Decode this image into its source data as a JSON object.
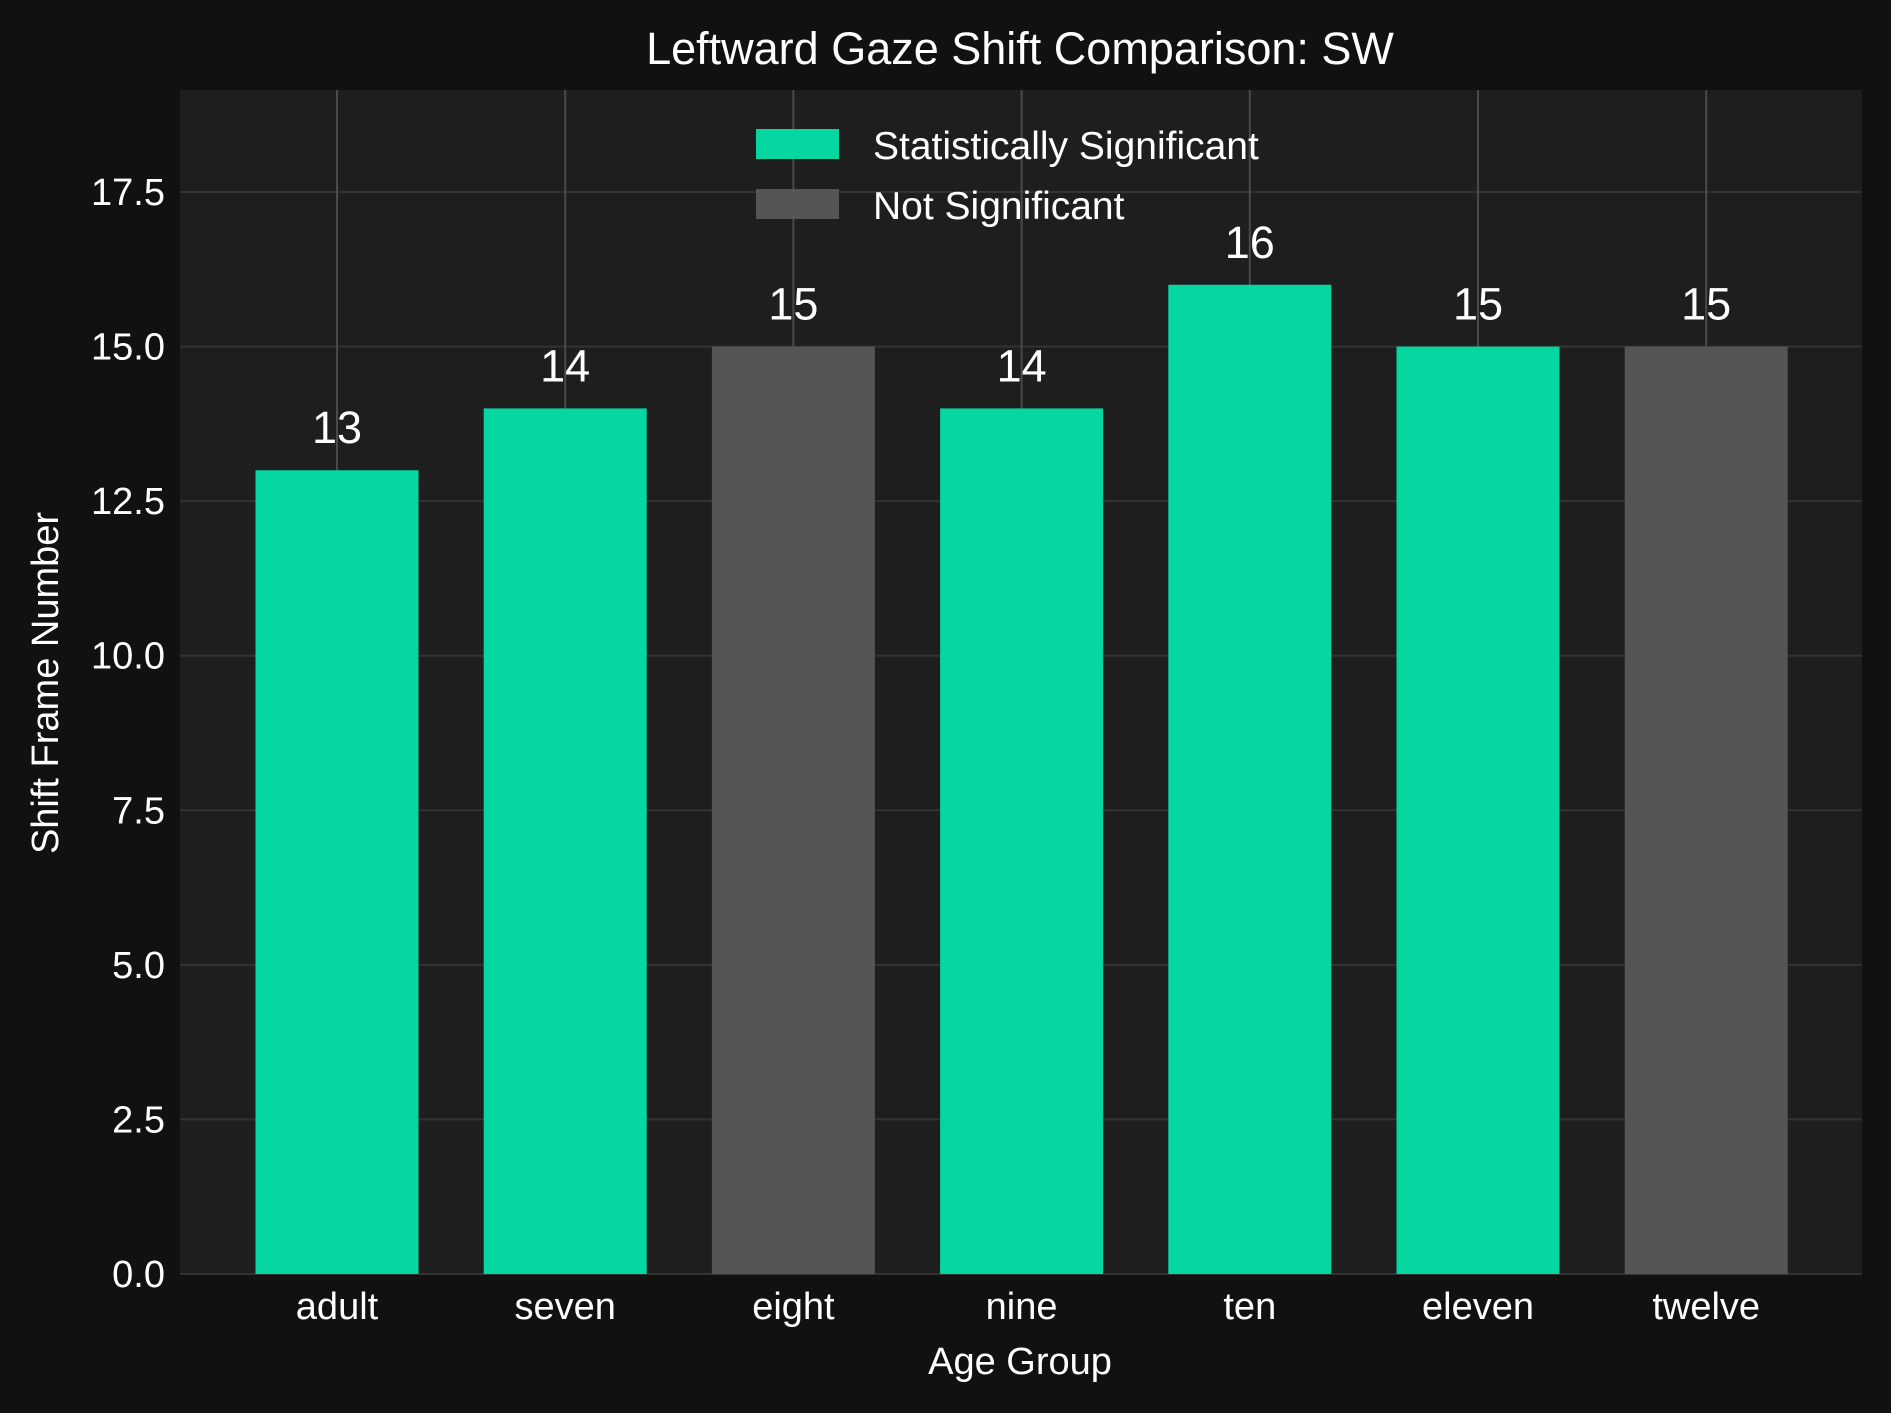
{
  "chart_data": {
    "type": "bar",
    "title": "Leftward Gaze Shift Comparison: SW",
    "xlabel": "Age Group",
    "ylabel": "Shift Frame Number",
    "categories": [
      "adult",
      "seven",
      "eight",
      "nine",
      "ten",
      "eleven",
      "twelve"
    ],
    "values": [
      13,
      14,
      15,
      14,
      16,
      15,
      15
    ],
    "significant": [
      true,
      true,
      false,
      true,
      true,
      true,
      false
    ],
    "data_labels": [
      "13",
      "14",
      "15",
      "14",
      "16",
      "15",
      "15"
    ],
    "ylim": [
      0,
      19.15
    ],
    "yticks": [
      0,
      2.5,
      5,
      7.5,
      10,
      12.5,
      15,
      17.5
    ],
    "ytick_labels": [
      "0.0",
      "2.5",
      "5.0",
      "7.5",
      "10.0",
      "12.5",
      "15.0",
      "17.5"
    ],
    "grid": true,
    "legend": {
      "position": "top-center",
      "entries": [
        {
          "label": "Statistically Significant",
          "color": "#06d6a0"
        },
        {
          "label": "Not Significant",
          "color": "#555555"
        }
      ]
    },
    "colors": {
      "significant": "#06d6a0",
      "not_significant": "#555555",
      "background": "#111111",
      "plot_background": "#1e1e1e",
      "grid": "#333333"
    }
  }
}
